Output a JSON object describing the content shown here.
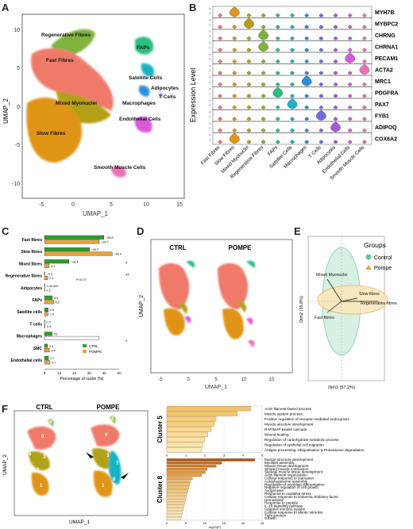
{
  "panels": {
    "A": "A",
    "B": "B",
    "C": "C",
    "D": "D",
    "E": "E",
    "F": "F"
  },
  "panelA": {
    "xlabel": "UMAP_1",
    "ylabel": "UMAP_2",
    "xticks": [
      "-5",
      "0",
      "5",
      "10",
      "15"
    ],
    "yticks": [
      "10",
      "5",
      "0",
      "-5",
      "-10"
    ],
    "labels": [
      {
        "text": "Regenerative Fibres"
      },
      {
        "text": "Fast Fibres"
      },
      {
        "text": "Mixed Myonuclei"
      },
      {
        "text": "Slow Fibres"
      },
      {
        "text": "FAPs"
      },
      {
        "text": "Satellite Cells"
      },
      {
        "text": "Adipocytes"
      },
      {
        "text": "T Cells"
      },
      {
        "text": "Macrophages"
      },
      {
        "text": "Endothelial Cells"
      },
      {
        "text": "Smooth Muscle Cells"
      }
    ]
  },
  "panelB": {
    "ylabel": "Expression Level",
    "genes": [
      "MYH7B",
      "MYBPC2",
      "CHRNG",
      "CHRNA1",
      "PECAM1",
      "ACTA2",
      "MRC1",
      "PDGFRA",
      "PAX7",
      "FYB1",
      "ADIPOQ",
      "COX6A2"
    ],
    "yticks": [
      "4",
      "2",
      "0"
    ],
    "groups": [
      "Fast Fibres",
      "Slow Fibres",
      "Mixed Myonuclei",
      "Regenerative Fibres",
      "FAPs",
      "Satellite Cells",
      "Macrophages",
      "T Cells",
      "Adipocytes",
      "Endothelial Cells",
      "Smooth Muscle Cells"
    ]
  },
  "chart_data": [
    {
      "type": "bar",
      "xlabel": "Percentage of nuclei (%)",
      "xticks": [
        "0",
        "10",
        "20",
        "30",
        "40",
        "50"
      ],
      "xlim": [
        0,
        50
      ],
      "categories": [
        "Fast fibres",
        "Slow fibres",
        "Mixed fibres",
        "Regenerative fibres",
        "Adipocytes",
        "FAPs",
        "Satellite cells",
        "T cells",
        "Macrophages",
        "SMC",
        "Endothelial cells"
      ],
      "series": [
        {
          "name": "CTRL",
          "color": "#2ca02c",
          "values": [
            39.8,
            30.2,
            16.4,
            0.3,
            0.002,
            5.3,
            2.5,
            0.2,
            5.1,
            2.1,
            2.7
          ]
        },
        {
          "name": "POMPE",
          "color": "#e8a33d",
          "values": [
            36.7,
            45.4,
            3.1,
            2.2,
            0.1,
            6.2,
            2.4,
            0.4,
            36.4,
            3.4,
            3.7
          ]
        }
      ],
      "value_labels": {
        "CTRL": [
          "~39.8",
          "~30.2",
          "~16.4",
          "~0.3",
          "2.0e-002",
          "5.3",
          "2.5",
          "0.2",
          "5.1",
          "2.1",
          "2.7"
        ],
        "POMPE": [
          "~36.7",
          "~45.4",
          "3.1",
          "2.2",
          "0.1",
          "6.2",
          "2.4",
          "0.4",
          "",
          "3.4",
          "3.7"
        ]
      },
      "annotations": [
        "*",
        "**",
        "P=0.07",
        "*"
      ]
    },
    {
      "type": "bar",
      "title": "Cluster 5",
      "xlabel": "-log10(P)",
      "xticks": [
        "0",
        "1",
        "2",
        "3",
        "4",
        "5"
      ],
      "xlim": [
        0,
        5.8
      ],
      "categories": [
        "Actin filament-based process",
        "Muscle system process",
        "Positive regulation of receptor-mediated endocytosis",
        "Muscle structure development",
        "RAF/MAP kinase cascade",
        "Wound healing",
        "Regulation of carbohydrate metabolic process",
        "Regulation of epithelial cell migration",
        "Antigen processing: Ubiquitination & Proteasome degradation"
      ],
      "values": [
        5.1,
        4.3,
        3.0,
        2.9,
        2.7,
        2.5,
        2.3,
        2.2,
        2.1
      ]
    },
    {
      "type": "bar",
      "title": "Cluster 8",
      "xlabel": "-log10(P)",
      "xticks": [
        "0",
        "5",
        "10",
        "15",
        "20",
        "25"
      ],
      "xlim": [
        0,
        26
      ],
      "categories": [
        "Muscle structure development",
        "Myofibril assembly",
        "Muscle tissue development",
        "Striated muscle contraction",
        "Skeletal muscle tissue development",
        "Actin filament organization",
        "Cellular response to starvation",
        "Autophagosome assembly",
        "Regulation of myoblast differentiation",
        "Negative regulation of cell growth",
        "Axogenesis",
        "Response to oxidative stress",
        "Cellular response to leukemia inhibitory factor",
        "Hemostasis",
        "Response to peptide",
        "IL-18 signaling pathway",
        "Adaptive immune system",
        "Cellular response to abiotic stimulus",
        "Tight junction",
        "Growth"
      ],
      "values": [
        24,
        15,
        13.5,
        11,
        10.5,
        9.5,
        7,
        6.5,
        6.2,
        6,
        5.8,
        5.5,
        5.3,
        5.1,
        4.9,
        4.7,
        4.5,
        4.3,
        4.1,
        3.9
      ]
    }
  ],
  "panelD": {
    "titles": [
      "CTRL",
      "POMPE"
    ],
    "xlabel": "UMAP_1",
    "ylabel": "UMAP_2",
    "xticks": [
      "-5",
      "0",
      "5",
      "10",
      "15"
    ],
    "yticks": [
      "10",
      "5",
      "0",
      "-5",
      "-10"
    ]
  },
  "panelE": {
    "legend_title": "Groups",
    "legend": [
      "Control",
      "Pompe"
    ],
    "xlabel": "Dim1 (57.2%)",
    "ylabel": "Dim2 (35.8%)",
    "vectors": [
      "Mixed Myonuclei",
      "Slow fibres",
      "Regenerative fibres",
      "Fast fibres"
    ]
  },
  "panelF": {
    "titles": [
      "CTRL",
      "POMPE"
    ],
    "xlabel": "UMAP_1",
    "ylabel": "UMAP_2",
    "cluster_numbers": [
      "0",
      "1",
      "2",
      "3",
      "4",
      "5",
      "6",
      "7",
      "8"
    ]
  }
}
